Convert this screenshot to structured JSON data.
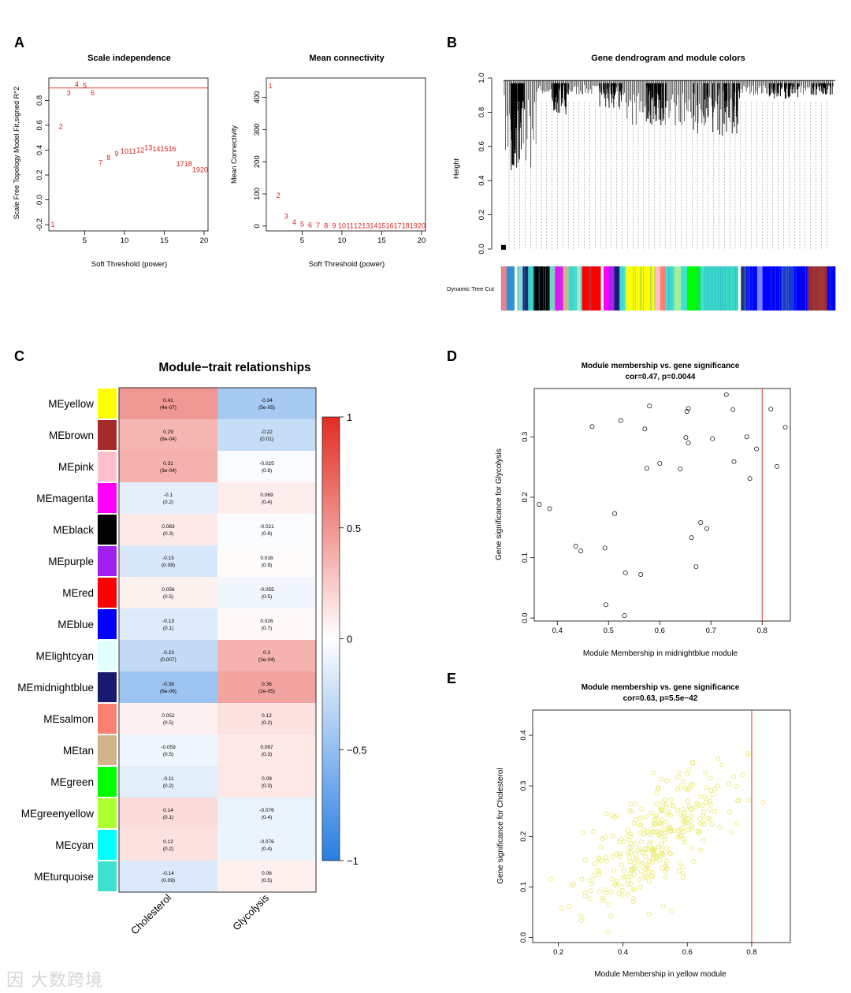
{
  "panels": {
    "A": {
      "label": "A",
      "scale_independence": {
        "type": "scatter-text",
        "title": "Scale independence",
        "xlabel": "Soft Threshold (power)",
        "ylabel": "Scale Free Topology Model Fit,signed R^2",
        "xlim": [
          0.5,
          20.5
        ],
        "ylim": [
          -0.25,
          0.98
        ],
        "xticks": [
          5,
          10,
          15,
          20
        ],
        "yticks": [
          -0.2,
          0.0,
          0.2,
          0.4,
          0.6,
          0.8
        ],
        "hline": 0.9,
        "points": [
          {
            "x": 1,
            "y": -0.2,
            "label": "1"
          },
          {
            "x": 2,
            "y": 0.59,
            "label": "2"
          },
          {
            "x": 3,
            "y": 0.86,
            "label": "3"
          },
          {
            "x": 4,
            "y": 0.93,
            "label": "4"
          },
          {
            "x": 5,
            "y": 0.92,
            "label": "5"
          },
          {
            "x": 6,
            "y": 0.86,
            "label": "6"
          },
          {
            "x": 7,
            "y": 0.3,
            "label": "7"
          },
          {
            "x": 8,
            "y": 0.34,
            "label": "8"
          },
          {
            "x": 9,
            "y": 0.37,
            "label": "9"
          },
          {
            "x": 10,
            "y": 0.39,
            "label": "10"
          },
          {
            "x": 11,
            "y": 0.39,
            "label": "11"
          },
          {
            "x": 12,
            "y": 0.4,
            "label": "12"
          },
          {
            "x": 13,
            "y": 0.42,
            "label": "13"
          },
          {
            "x": 14,
            "y": 0.41,
            "label": "14"
          },
          {
            "x": 15,
            "y": 0.41,
            "label": "15"
          },
          {
            "x": 16,
            "y": 0.41,
            "label": "16"
          },
          {
            "x": 17,
            "y": 0.29,
            "label": "17"
          },
          {
            "x": 18,
            "y": 0.29,
            "label": "18"
          },
          {
            "x": 19,
            "y": 0.24,
            "label": "19"
          },
          {
            "x": 20,
            "y": 0.24,
            "label": "20"
          }
        ]
      },
      "mean_connectivity": {
        "type": "scatter-text",
        "title": "Mean connectivity",
        "xlabel": "Soft Threshold (power)",
        "ylabel": "Mean Connectivity",
        "xlim": [
          0.5,
          20.5
        ],
        "ylim": [
          -15,
          460
        ],
        "xticks": [
          5,
          10,
          15,
          20
        ],
        "yticks": [
          0,
          100,
          200,
          300,
          400
        ],
        "points": [
          {
            "x": 1,
            "y": 435,
            "label": "1"
          },
          {
            "x": 2,
            "y": 95,
            "label": "2"
          },
          {
            "x": 3,
            "y": 30,
            "label": "3"
          },
          {
            "x": 4,
            "y": 12,
            "label": "4"
          },
          {
            "x": 5,
            "y": 6,
            "label": "5"
          },
          {
            "x": 6,
            "y": 3,
            "label": "6"
          },
          {
            "x": 7,
            "y": 2,
            "label": "7"
          },
          {
            "x": 8,
            "y": 1,
            "label": "8"
          },
          {
            "x": 9,
            "y": 1,
            "label": "9"
          },
          {
            "x": 10,
            "y": 1,
            "label": "10"
          },
          {
            "x": 11,
            "y": 1,
            "label": "11"
          },
          {
            "x": 12,
            "y": 1,
            "label": "12"
          },
          {
            "x": 13,
            "y": 1,
            "label": "13"
          },
          {
            "x": 14,
            "y": 1,
            "label": "14"
          },
          {
            "x": 15,
            "y": 1,
            "label": "15"
          },
          {
            "x": 16,
            "y": 1,
            "label": "16"
          },
          {
            "x": 17,
            "y": 1,
            "label": "17"
          },
          {
            "x": 18,
            "y": 1,
            "label": "18"
          },
          {
            "x": 19,
            "y": 1,
            "label": "19"
          },
          {
            "x": 20,
            "y": 1,
            "label": "20"
          }
        ]
      }
    },
    "B": {
      "label": "B",
      "type": "dendrogram",
      "title": "Gene dendrogram and module colors",
      "ylabel": "Height",
      "yticks": [
        0.0,
        0.2,
        0.4,
        0.6,
        0.8,
        1.0
      ],
      "color_bar_label": "Dynamic Tree Cut",
      "color_bar_segments": [
        {
          "color": "#e8838f",
          "weight": 2
        },
        {
          "color": "#2f8fd6",
          "weight": 3
        },
        {
          "color": "#ffffff",
          "weight": 1
        },
        {
          "color": "#8fd6d6",
          "weight": 2
        },
        {
          "color": "#1e2c7a",
          "weight": 2
        },
        {
          "color": "#3ad6c8",
          "weight": 2
        },
        {
          "color": "#000000",
          "weight": 6
        },
        {
          "color": "#6fd6c0",
          "weight": 2
        },
        {
          "color": "#ff00ff",
          "weight": 3
        },
        {
          "color": "#d2b48c",
          "weight": 2
        },
        {
          "color": "#40e0d0",
          "weight": 3
        },
        {
          "color": "#9aeec6",
          "weight": 2
        },
        {
          "color": "#ff0000",
          "weight": 7
        },
        {
          "color": "#e0ffff",
          "weight": 1
        },
        {
          "color": "#ff00ff",
          "weight": 2
        },
        {
          "color": "#a020f0",
          "weight": 2
        },
        {
          "color": "#191970",
          "weight": 2
        },
        {
          "color": "#40e0d0",
          "weight": 2
        },
        {
          "color": "#ffff00",
          "weight": 11
        },
        {
          "color": "#ffc0cb",
          "weight": 2
        },
        {
          "color": "#fa8072",
          "weight": 2
        },
        {
          "color": "#40e0d0",
          "weight": 3
        },
        {
          "color": "#a0f0a0",
          "weight": 3
        },
        {
          "color": "#40e0d0",
          "weight": 2
        },
        {
          "color": "#00ff00",
          "weight": 5
        },
        {
          "color": "#40e0d0",
          "weight": 2
        },
        {
          "color": "#3ad6c8",
          "weight": 12
        },
        {
          "color": "#ffffff",
          "weight": 1
        },
        {
          "color": "#1e2c7a",
          "weight": 2
        },
        {
          "color": "#0000ff",
          "weight": 4
        },
        {
          "color": "#8080ff",
          "weight": 2
        },
        {
          "color": "#0000ff",
          "weight": 7
        },
        {
          "color": "#2233cc",
          "weight": 4
        },
        {
          "color": "#0000ff",
          "weight": 6
        },
        {
          "color": "#a52a2a",
          "weight": 7
        },
        {
          "color": "#0000ff",
          "weight": 3
        }
      ]
    },
    "C": {
      "label": "C",
      "type": "heatmap",
      "title": "Module−trait relationships",
      "columns": [
        "Cholesterol",
        "Glycolysis"
      ],
      "colorbar_ticks": [
        {
          "value": 1,
          "label": "1"
        },
        {
          "value": 0.5,
          "label": "0.5"
        },
        {
          "value": 0,
          "label": "0"
        },
        {
          "value": -0.5,
          "label": "−0.5"
        },
        {
          "value": -1,
          "label": "−1"
        }
      ],
      "rows": [
        {
          "module": "MEyellow",
          "color": "#ffff00",
          "cells": [
            {
              "r": 0.41,
              "t": "0.41",
              "p": "(4e-07)"
            },
            {
              "r": -0.34,
              "t": "-0.34",
              "p": "(5e-05)"
            }
          ]
        },
        {
          "module": "MEbrown",
          "color": "#a52a2a",
          "cells": [
            {
              "r": 0.29,
              "t": "0.29",
              "p": "(6e-04)"
            },
            {
              "r": -0.22,
              "t": "-0.22",
              "p": "(0.01)"
            }
          ]
        },
        {
          "module": "MEpink",
          "color": "#ffc0cb",
          "cells": [
            {
              "r": 0.31,
              "t": "0.31",
              "p": "(3e-04)"
            },
            {
              "r": -0.025,
              "t": "-0.025",
              "p": "(0.8)"
            }
          ]
        },
        {
          "module": "MEmagenta",
          "color": "#ff00ff",
          "cells": [
            {
              "r": -0.1,
              "t": "-0.1",
              "p": "(0.2)"
            },
            {
              "r": 0.069,
              "t": "0.069",
              "p": "(0.4)"
            }
          ]
        },
        {
          "module": "MEblack",
          "color": "#000000",
          "cells": [
            {
              "r": 0.083,
              "t": "0.083",
              "p": "(0.3)"
            },
            {
              "r": -0.021,
              "t": "-0.021",
              "p": "(0.8)"
            }
          ]
        },
        {
          "module": "MEpurple",
          "color": "#a020f0",
          "cells": [
            {
              "r": -0.15,
              "t": "-0.15",
              "p": "(0.08)"
            },
            {
              "r": 0.016,
              "t": "0.016",
              "p": "(0.9)"
            }
          ]
        },
        {
          "module": "MEred",
          "color": "#ff0000",
          "cells": [
            {
              "r": 0.056,
              "t": "0.056",
              "p": "(0.5)"
            },
            {
              "r": -0.055,
              "t": "-0.055",
              "p": "(0.5)"
            }
          ]
        },
        {
          "module": "MEblue",
          "color": "#0000ff",
          "cells": [
            {
              "r": -0.13,
              "t": "-0.13",
              "p": "(0.1)"
            },
            {
              "r": 0.026,
              "t": "0.026",
              "p": "(0.7)"
            }
          ]
        },
        {
          "module": "MElightcyan",
          "color": "#e0ffff",
          "cells": [
            {
              "r": -0.23,
              "t": "-0.23",
              "p": "(0.007)"
            },
            {
              "r": 0.3,
              "t": "0.3",
              "p": "(3e-04)"
            }
          ]
        },
        {
          "module": "MEmidnightblue",
          "color": "#191970",
          "cells": [
            {
              "r": -0.38,
              "t": "-0.38",
              "p": "(6e-06)"
            },
            {
              "r": 0.36,
              "t": "0.36",
              "p": "(2e-05)"
            }
          ]
        },
        {
          "module": "MEsalmon",
          "color": "#fa8072",
          "cells": [
            {
              "r": 0.052,
              "t": "0.052",
              "p": "(0.5)"
            },
            {
              "r": 0.12,
              "t": "0.12",
              "p": "(0.2)"
            }
          ]
        },
        {
          "module": "MEtan",
          "color": "#d2b48c",
          "cells": [
            {
              "r": -0.059,
              "t": "-0.059",
              "p": "(0.5)"
            },
            {
              "r": 0.087,
              "t": "0.087",
              "p": "(0.3)"
            }
          ]
        },
        {
          "module": "MEgreen",
          "color": "#00ff00",
          "cells": [
            {
              "r": -0.11,
              "t": "-0.11",
              "p": "(0.2)"
            },
            {
              "r": 0.09,
              "t": "0.09",
              "p": "(0.3)"
            }
          ]
        },
        {
          "module": "MEgreenyellow",
          "color": "#adff2f",
          "cells": [
            {
              "r": 0.14,
              "t": "0.14",
              "p": "(0.1)"
            },
            {
              "r": -0.076,
              "t": "-0.076",
              "p": "(0.4)"
            }
          ]
        },
        {
          "module": "MEcyan",
          "color": "#00ffff",
          "cells": [
            {
              "r": 0.12,
              "t": "0.12",
              "p": "(0.2)"
            },
            {
              "r": -0.076,
              "t": "-0.076",
              "p": "(0.4)"
            }
          ]
        },
        {
          "module": "MEturquoise",
          "color": "#40e0d0",
          "cells": [
            {
              "r": -0.14,
              "t": "-0.14",
              "p": "(0.09)"
            },
            {
              "r": 0.06,
              "t": "0.06",
              "p": "(0.5)"
            }
          ]
        }
      ]
    },
    "D": {
      "label": "D",
      "type": "scatter",
      "title": "Module membership vs. gene significance",
      "subtitle": "cor=0.47, p=0.0044",
      "xlabel": "Module Membership in midnightblue module",
      "ylabel": "Gene significance for  Glycolysis",
      "xlim": [
        0.355,
        0.855
      ],
      "ylim": [
        -0.005,
        0.38
      ],
      "xticks": [
        0.4,
        0.5,
        0.6,
        0.7,
        0.8
      ],
      "yticks": [
        0.0,
        0.1,
        0.2,
        0.3
      ],
      "vline": 0.8,
      "points": [
        [
          0.365,
          0.188
        ],
        [
          0.385,
          0.181
        ],
        [
          0.436,
          0.119
        ],
        [
          0.446,
          0.111
        ],
        [
          0.468,
          0.317
        ],
        [
          0.493,
          0.116
        ],
        [
          0.495,
          0.022
        ],
        [
          0.512,
          0.173
        ],
        [
          0.524,
          0.327
        ],
        [
          0.531,
          0.004
        ],
        [
          0.533,
          0.075
        ],
        [
          0.563,
          0.072
        ],
        [
          0.571,
          0.313
        ],
        [
          0.575,
          0.248
        ],
        [
          0.58,
          0.351
        ],
        [
          0.6,
          0.256
        ],
        [
          0.64,
          0.247
        ],
        [
          0.651,
          0.299
        ],
        [
          0.653,
          0.342
        ],
        [
          0.656,
          0.347
        ],
        [
          0.656,
          0.29
        ],
        [
          0.662,
          0.133
        ],
        [
          0.671,
          0.085
        ],
        [
          0.68,
          0.158
        ],
        [
          0.692,
          0.148
        ],
        [
          0.703,
          0.297
        ],
        [
          0.73,
          0.37
        ],
        [
          0.743,
          0.345
        ],
        [
          0.745,
          0.259
        ],
        [
          0.77,
          0.3
        ],
        [
          0.776,
          0.231
        ],
        [
          0.789,
          0.28
        ],
        [
          0.817,
          0.346
        ],
        [
          0.829,
          0.251
        ],
        [
          0.845,
          0.316
        ]
      ]
    },
    "E": {
      "label": "E",
      "type": "scatter",
      "title": "Module membership vs. gene significance",
      "subtitle": "cor=0.63, p=5.5e−42",
      "xlabel": "Module Membership in yellow module",
      "ylabel": "Gene significance for  Cholesterol",
      "xlim": [
        0.12,
        0.92
      ],
      "ylim": [
        -0.01,
        0.45
      ],
      "xticks": [
        0.2,
        0.4,
        0.6,
        0.8
      ],
      "yticks": [
        0.0,
        0.1,
        0.2,
        0.3,
        0.4
      ],
      "vline": 0.8,
      "point_color": "#ecec7a",
      "point_count": 330,
      "trend": {
        "intercept": -0.02,
        "slope": 0.42,
        "spread": 0.07
      }
    }
  },
  "watermark": "因 大数跨境"
}
